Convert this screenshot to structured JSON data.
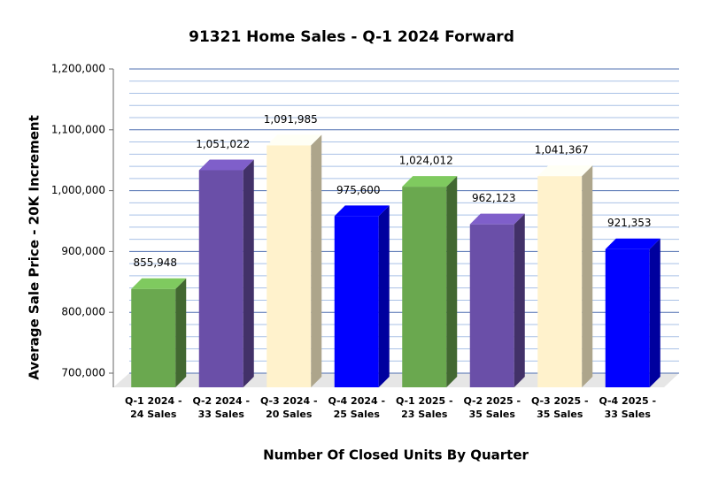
{
  "chart_data": {
    "type": "bar3d",
    "title": "91321 Home Sales - Q-1 2024 Forward",
    "y_label": "Average Sale Price - 20K Increment",
    "x_label": "Number Of Closed Units By Quarter",
    "categories": [
      [
        "Q-1 2024 -",
        "24 Sales"
      ],
      [
        "Q-2 2024 -",
        "33 Sales"
      ],
      [
        "Q-3 2024 -",
        "20 Sales"
      ],
      [
        "Q-4 2024 -",
        "25 Sales"
      ],
      [
        "Q-1 2025 -",
        "23 Sales"
      ],
      [
        "Q-2 2025 -",
        "35 Sales"
      ],
      [
        "Q-3 2025 -",
        "35 Sales"
      ],
      [
        "Q-4 2025 -",
        "33 Sales"
      ]
    ],
    "values": [
      855948,
      1051022,
      1091985,
      975600,
      1024012,
      962123,
      1041367,
      921353
    ],
    "value_labels": [
      "855,948",
      "1,051,022",
      "1,091,985",
      "975,600",
      "1,024,012",
      "962,123",
      "1,041,367",
      "921,353"
    ],
    "colors": [
      "#6aa84f",
      "#6a4fa8",
      "#fff2cc",
      "#0000ff",
      "#6aa84f",
      "#6a4fa8",
      "#fff2cc",
      "#0000ff"
    ],
    "ylim": [
      700000,
      1200000
    ],
    "yticks": [
      {
        "value": 700000,
        "label": "700,000"
      },
      {
        "value": 800000,
        "label": "800,000"
      },
      {
        "value": 900000,
        "label": "900,000"
      },
      {
        "value": 1000000,
        "label": "1,000,000"
      },
      {
        "value": 1100000,
        "label": "1,100,000"
      },
      {
        "value": 1200000,
        "label": "1,200,000"
      }
    ],
    "minor_yticks": [
      720000,
      740000,
      760000,
      780000,
      820000,
      840000,
      860000,
      880000,
      920000,
      940000,
      960000,
      980000,
      1020000,
      1040000,
      1060000,
      1080000,
      1120000,
      1140000,
      1160000,
      1180000
    ],
    "grid": true
  }
}
